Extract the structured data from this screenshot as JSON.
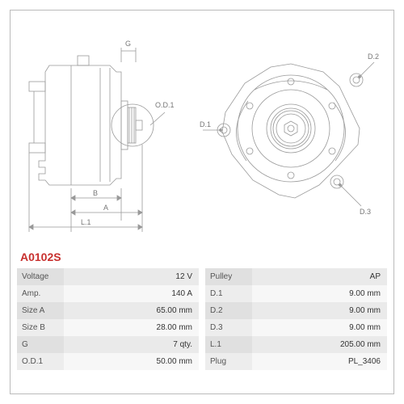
{
  "part_number": "A0102S",
  "diagram": {
    "stroke": "#999999",
    "stroke_width": 0.8,
    "label_color": "#777777",
    "label_fontsize": 9,
    "side_labels": {
      "G": "G",
      "OD1": "O.D.1",
      "B": "B",
      "A": "A",
      "L1": "L.1"
    },
    "front_labels": {
      "D1": "D.1",
      "D2": "D.2",
      "D3": "D.3"
    }
  },
  "specs_left": [
    {
      "label": "Voltage",
      "value": "12 V"
    },
    {
      "label": "Amp.",
      "value": "140 A"
    },
    {
      "label": "Size A",
      "value": "65.00 mm"
    },
    {
      "label": "Size B",
      "value": "28.00 mm"
    },
    {
      "label": "G",
      "value": "7 qty."
    },
    {
      "label": "O.D.1",
      "value": "50.00 mm"
    }
  ],
  "specs_right": [
    {
      "label": "Pulley",
      "value": "AP"
    },
    {
      "label": "D.1",
      "value": "9.00 mm"
    },
    {
      "label": "D.2",
      "value": "9.00 mm"
    },
    {
      "label": "D.3",
      "value": "9.00 mm"
    },
    {
      "label": "L.1",
      "value": "205.00 mm"
    },
    {
      "label": "Plug",
      "value": "PL_3406"
    }
  ],
  "table_style": {
    "odd_row_bg": "#eaeaea",
    "even_row_bg": "#f7f7f7",
    "label_width": 58,
    "fontsize": 10
  }
}
